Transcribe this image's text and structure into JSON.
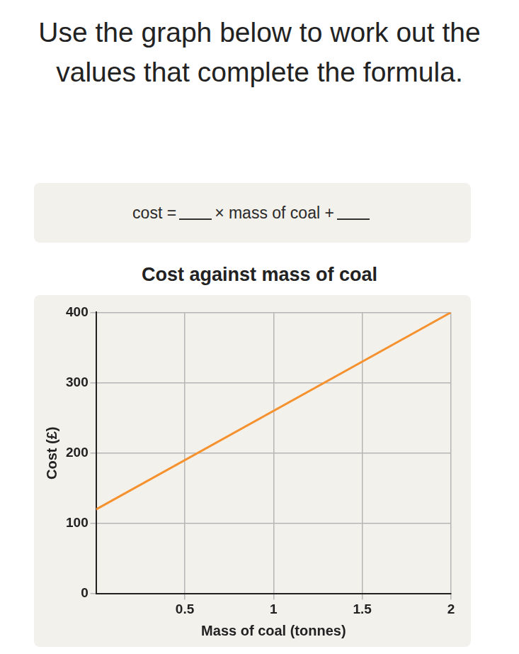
{
  "question": "Use the graph below to work out the values that complete the formula.",
  "formula": {
    "left": "cost =",
    "middle": "× mass of coal +"
  },
  "chart_data": {
    "type": "line",
    "title": "Cost against mass of coal",
    "x_label": "Mass of coal (tonnes)",
    "y_label": "Cost (£)",
    "x": [
      0,
      2
    ],
    "values": [
      120,
      400
    ],
    "color": "#f5922f",
    "xlim": [
      0,
      2
    ],
    "xticks": [
      0.5,
      1,
      1.5,
      2
    ],
    "ylim": [
      0,
      400
    ],
    "yticks": [
      0,
      100,
      200,
      300,
      400
    ],
    "grid": true
  }
}
